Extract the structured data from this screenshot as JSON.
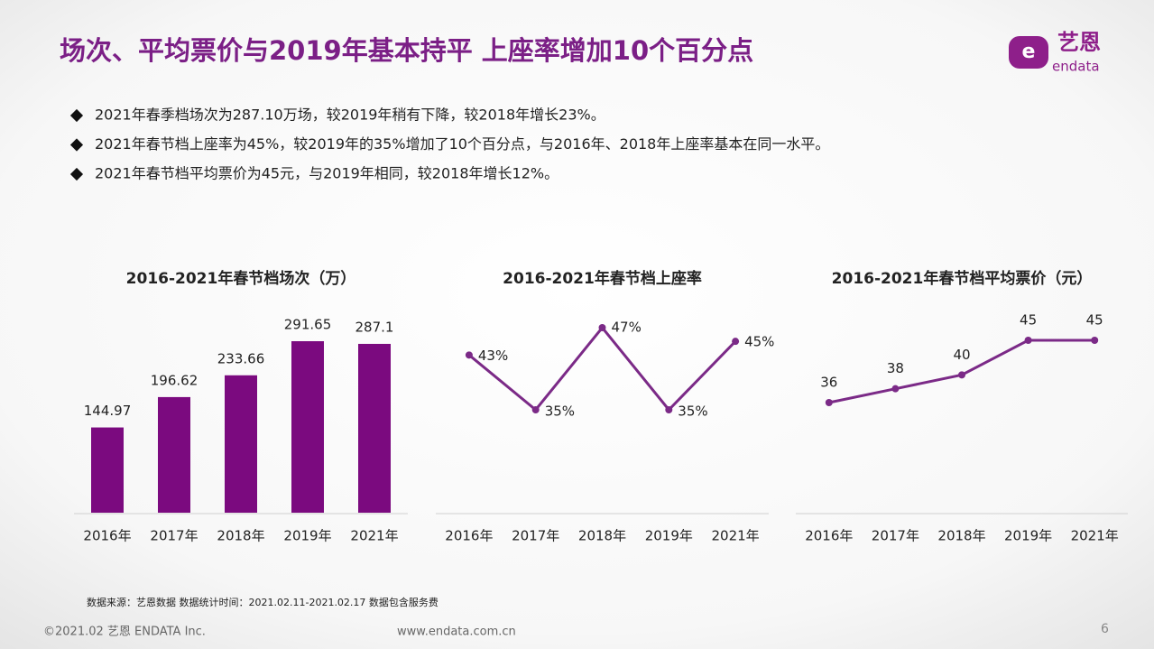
{
  "title": "场次、平均票价与2019年基本持平 上座率增加10个百分点",
  "logo": {
    "cn": "艺恩",
    "en": "endata"
  },
  "bullets": [
    "2021年春季档场次为287.10万场，较2019年稍有下降，较2018年增长23%。",
    "2021年春节档上座率为45%，较2019年的35%增加了10个百分点，与2016年、2018年上座率基本在同一水平。",
    "2021年春节档平均票价为45元，与2019年相同，较2018年增长12%。"
  ],
  "chart_data": [
    {
      "type": "bar",
      "title": "2016-2021年春节档场次（万）",
      "categories": [
        "2016年",
        "2017年",
        "2018年",
        "2019年",
        "2021年"
      ],
      "values": [
        144.97,
        196.62,
        233.66,
        291.65,
        287.1
      ],
      "color": "#7b0a7f"
    },
    {
      "type": "line",
      "title": "2016-2021年春节档上座率",
      "categories": [
        "2016年",
        "2017年",
        "2018年",
        "2019年",
        "2021年"
      ],
      "values": [
        43,
        35,
        47,
        35,
        45
      ],
      "value_labels": [
        "43%",
        "35%",
        "47%",
        "35%",
        "45%"
      ],
      "color": "#7b2a87"
    },
    {
      "type": "line",
      "title": "2016-2021年春节档平均票价（元）",
      "categories": [
        "2016年",
        "2017年",
        "2018年",
        "2019年",
        "2021年"
      ],
      "values": [
        36,
        38,
        40,
        45,
        45
      ],
      "color": "#7b2a87"
    }
  ],
  "source": "数据来源：艺恩数据   数据统计时间：2021.02.11-2021.02.17 数据包含服务费",
  "footer": {
    "copyright": "©2021.02 艺恩 ENDATA Inc.",
    "url": "www.endata.com.cn",
    "page": 6
  }
}
